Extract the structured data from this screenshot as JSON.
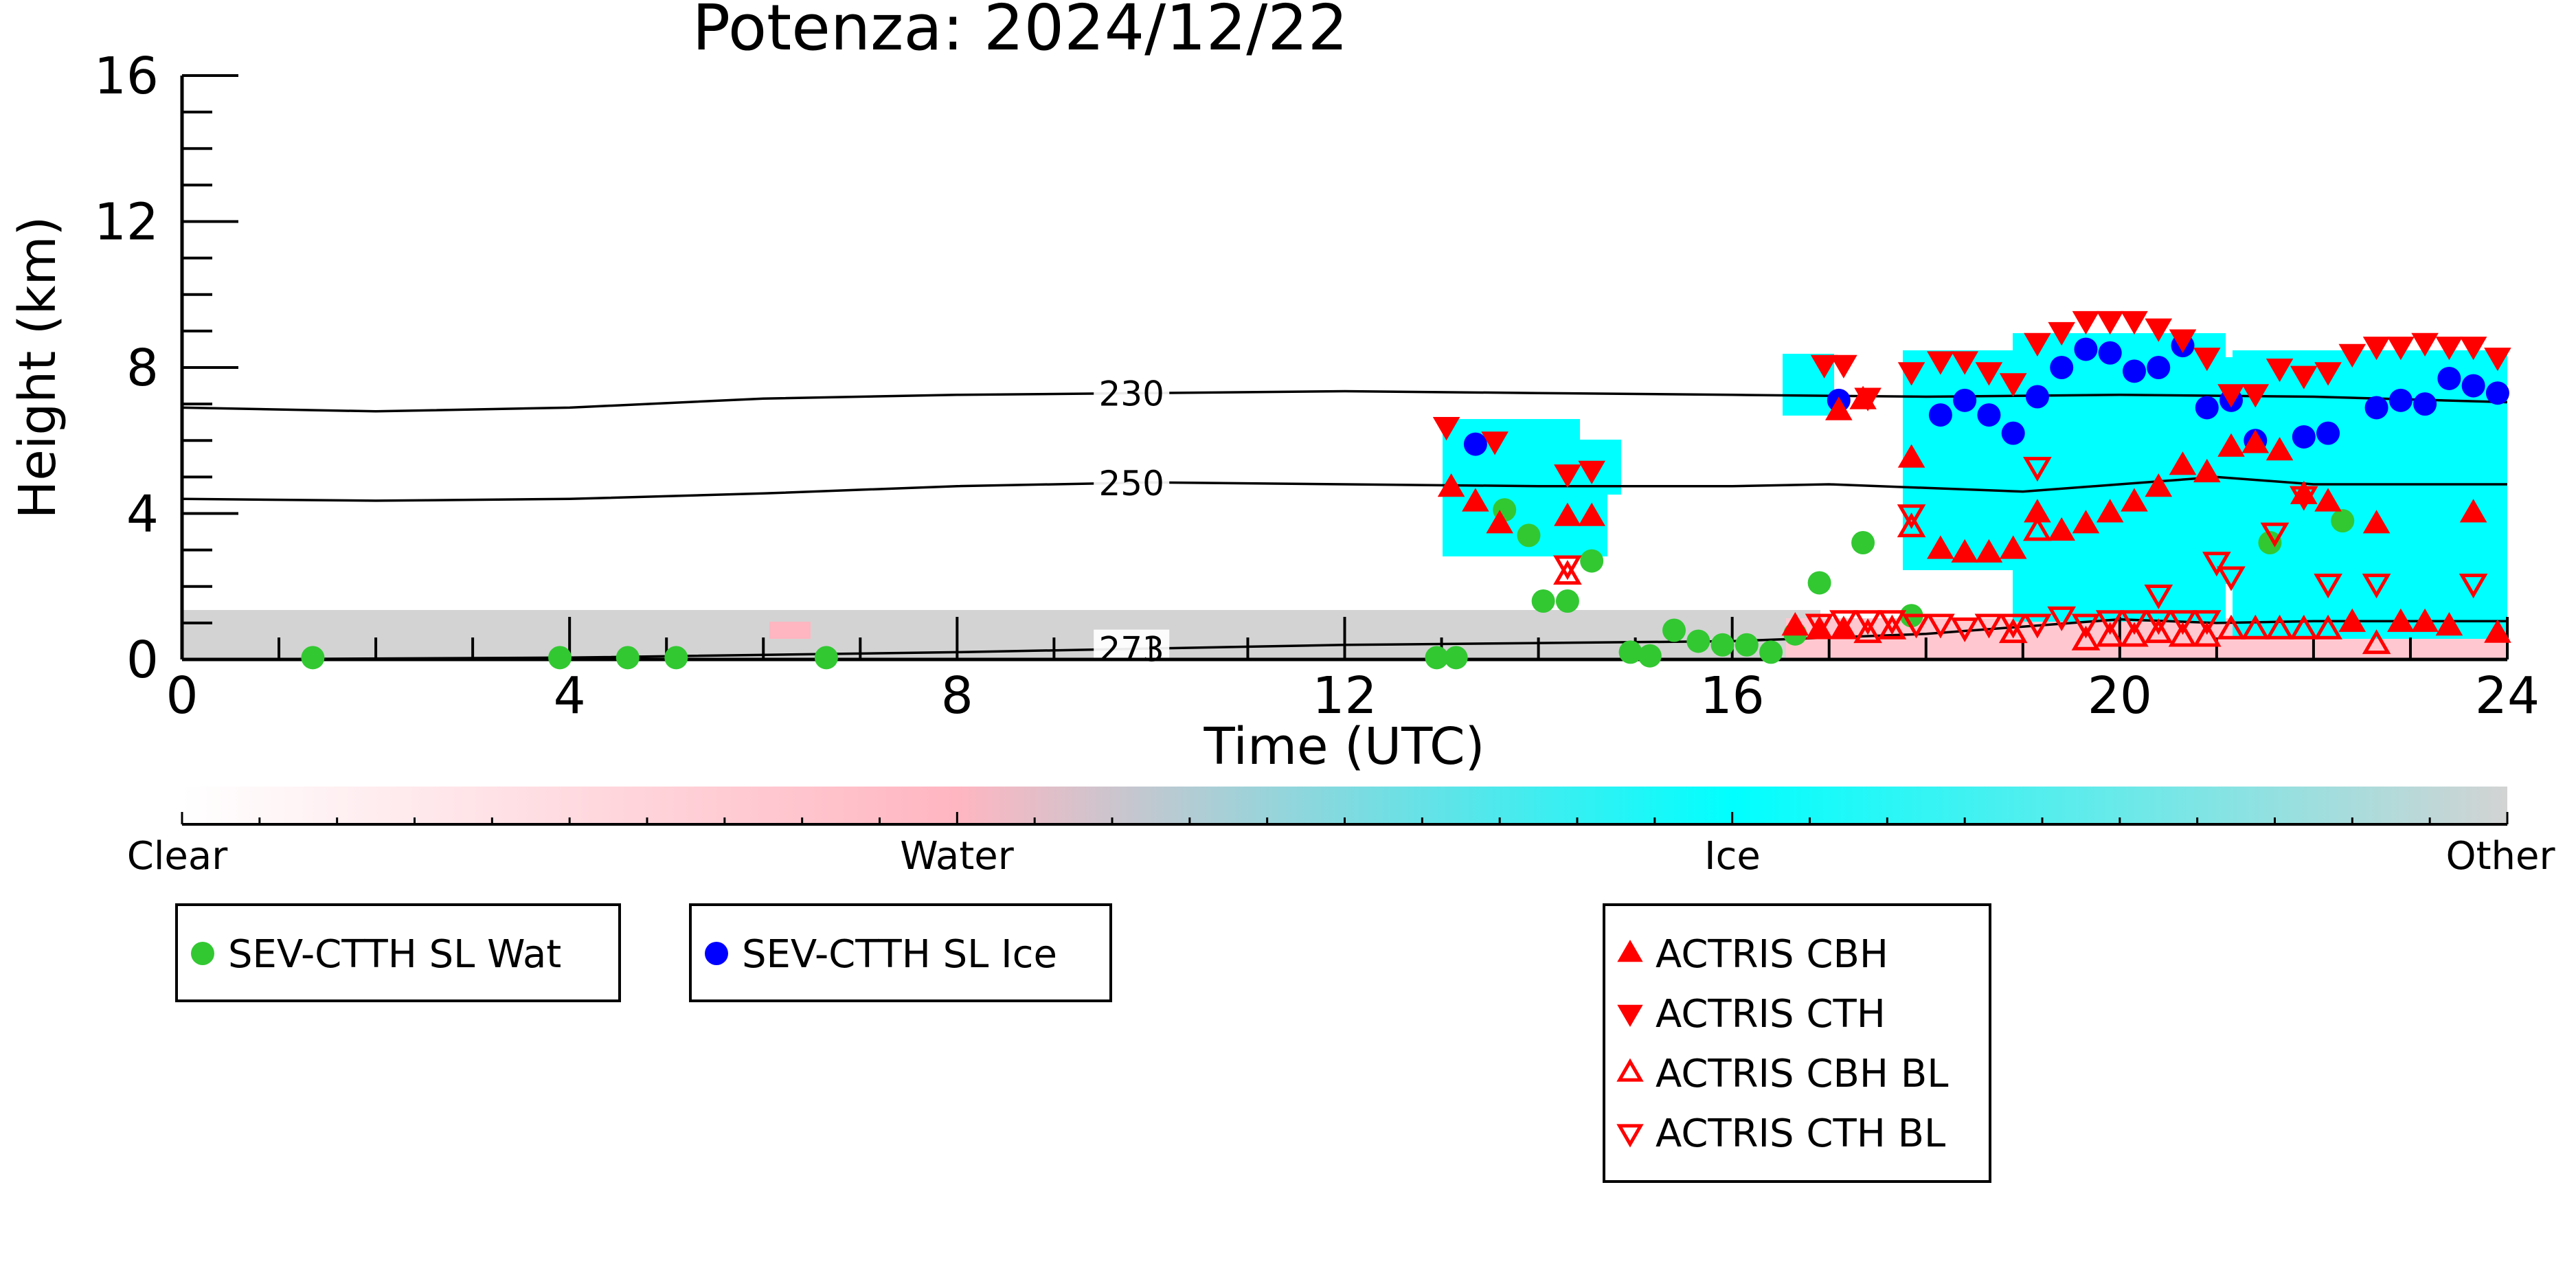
{
  "chart_data": {
    "type": "scatter",
    "title": "Potenza: 2024/12/22",
    "xlabel": "Time (UTC)",
    "ylabel": "Height (km)",
    "xlim": [
      0,
      24
    ],
    "ylim": [
      0,
      16
    ],
    "xticks": [
      "0",
      "4",
      "8",
      "12",
      "16",
      "20",
      "24"
    ],
    "yticks": [
      "0",
      "4",
      "8",
      "12",
      "16"
    ],
    "colorbar": {
      "labels": [
        "Clear",
        "Water",
        "Ice",
        "Other"
      ],
      "colors": [
        "#ffffff",
        "#ffb6c1",
        "#00ffff",
        "#d3d3d3"
      ]
    },
    "contours": [
      {
        "label": "230",
        "points": [
          [
            0,
            6.9
          ],
          [
            2,
            6.8
          ],
          [
            4,
            6.9
          ],
          [
            6,
            7.15
          ],
          [
            8,
            7.25
          ],
          [
            10,
            7.3
          ],
          [
            12,
            7.35
          ],
          [
            14,
            7.3
          ],
          [
            16,
            7.25
          ],
          [
            18,
            7.2
          ],
          [
            20,
            7.25
          ],
          [
            22,
            7.2
          ],
          [
            24,
            7.05
          ]
        ]
      },
      {
        "label": "250",
        "points": [
          [
            0,
            4.4
          ],
          [
            2,
            4.35
          ],
          [
            4,
            4.4
          ],
          [
            6,
            4.55
          ],
          [
            8,
            4.75
          ],
          [
            10,
            4.85
          ],
          [
            12,
            4.8
          ],
          [
            14,
            4.75
          ],
          [
            16,
            4.75
          ],
          [
            17,
            4.8
          ],
          [
            19,
            4.6
          ],
          [
            20,
            4.8
          ],
          [
            21,
            5.0
          ],
          [
            22,
            4.8
          ],
          [
            24,
            4.8
          ]
        ]
      },
      {
        "label": "273",
        "points": [
          [
            0,
            0.0
          ],
          [
            4,
            0.05
          ],
          [
            8,
            0.2
          ],
          [
            10,
            0.3
          ],
          [
            12,
            0.4
          ],
          [
            14,
            0.45
          ],
          [
            16,
            0.5
          ],
          [
            18,
            0.7
          ],
          [
            19,
            0.9
          ],
          [
            20,
            1.1
          ],
          [
            21,
            1.0
          ],
          [
            22,
            1.05
          ],
          [
            24,
            1.05
          ]
        ]
      }
    ],
    "series": [
      {
        "name": "SEV-CTTH SL Wat",
        "marker": "circle",
        "color": "#32c832",
        "points": [
          [
            1.35,
            0.05
          ],
          [
            3.9,
            0.05
          ],
          [
            4.6,
            0.05
          ],
          [
            5.1,
            0.05
          ],
          [
            6.65,
            0.05
          ],
          [
            12.95,
            0.05
          ],
          [
            13.15,
            0.05
          ],
          [
            13.65,
            4.1
          ],
          [
            13.9,
            3.4
          ],
          [
            14.05,
            1.6
          ],
          [
            14.3,
            1.6
          ],
          [
            14.55,
            2.7
          ],
          [
            14.95,
            0.2
          ],
          [
            15.15,
            0.1
          ],
          [
            15.4,
            0.8
          ],
          [
            15.65,
            0.5
          ],
          [
            15.9,
            0.4
          ],
          [
            16.15,
            0.4
          ],
          [
            16.4,
            0.2
          ],
          [
            16.65,
            0.7
          ],
          [
            16.9,
            2.1
          ],
          [
            17.35,
            3.2
          ],
          [
            17.85,
            1.2
          ],
          [
            21.55,
            3.2
          ],
          [
            22.3,
            3.8
          ]
        ]
      },
      {
        "name": "SEV-CTTH SL Ice",
        "marker": "circle",
        "color": "#0000ff",
        "points": [
          [
            13.35,
            5.9
          ],
          [
            17.1,
            7.1
          ],
          [
            18.15,
            6.7
          ],
          [
            18.4,
            7.1
          ],
          [
            18.65,
            6.7
          ],
          [
            18.9,
            6.2
          ],
          [
            19.15,
            7.2
          ],
          [
            19.4,
            8.0
          ],
          [
            19.65,
            8.5
          ],
          [
            19.9,
            8.4
          ],
          [
            20.15,
            7.9
          ],
          [
            20.4,
            8.0
          ],
          [
            20.65,
            8.6
          ],
          [
            20.9,
            6.9
          ],
          [
            21.15,
            7.1
          ],
          [
            21.4,
            6.0
          ],
          [
            21.9,
            6.1
          ],
          [
            22.15,
            6.2
          ],
          [
            22.65,
            6.9
          ],
          [
            22.9,
            7.1
          ],
          [
            23.15,
            7.0
          ],
          [
            23.4,
            7.7
          ],
          [
            23.65,
            7.5
          ],
          [
            23.9,
            7.3
          ]
        ]
      },
      {
        "name": "ACTRIS CBH",
        "marker": "triangle-up",
        "color": "#ff0000",
        "filled": true,
        "points": [
          [
            13.1,
            4.7
          ],
          [
            13.35,
            4.3
          ],
          [
            13.6,
            3.7
          ],
          [
            14.3,
            3.9
          ],
          [
            14.55,
            3.9
          ],
          [
            17.1,
            6.8
          ],
          [
            17.35,
            7.1
          ],
          [
            17.85,
            5.5
          ],
          [
            18.15,
            3.0
          ],
          [
            18.4,
            2.9
          ],
          [
            18.65,
            2.9
          ],
          [
            18.9,
            3.0
          ],
          [
            19.15,
            4.0
          ],
          [
            19.4,
            3.5
          ],
          [
            19.65,
            3.7
          ],
          [
            19.9,
            4.0
          ],
          [
            20.15,
            4.3
          ],
          [
            20.4,
            4.7
          ],
          [
            20.65,
            5.3
          ],
          [
            20.9,
            5.1
          ],
          [
            21.15,
            5.8
          ],
          [
            21.4,
            5.9
          ],
          [
            21.65,
            5.7
          ],
          [
            21.9,
            4.5
          ],
          [
            22.15,
            4.3
          ],
          [
            22.65,
            3.7
          ],
          [
            23.65,
            4.0
          ],
          [
            16.65,
            0.9
          ],
          [
            16.9,
            0.8
          ],
          [
            17.15,
            0.8
          ],
          [
            22.4,
            1.0
          ],
          [
            22.9,
            1.0
          ],
          [
            23.15,
            1.0
          ],
          [
            23.4,
            0.9
          ],
          [
            23.9,
            0.7
          ]
        ]
      },
      {
        "name": "ACTRIS CTH",
        "marker": "triangle-down",
        "color": "#ff0000",
        "filled": true,
        "points": [
          [
            13.05,
            6.4
          ],
          [
            13.55,
            6.0
          ],
          [
            14.3,
            5.1
          ],
          [
            14.55,
            5.2
          ],
          [
            16.95,
            8.1
          ],
          [
            17.15,
            8.1
          ],
          [
            17.4,
            7.2
          ],
          [
            17.85,
            7.9
          ],
          [
            18.15,
            8.2
          ],
          [
            18.4,
            8.2
          ],
          [
            18.65,
            7.9
          ],
          [
            18.9,
            7.6
          ],
          [
            19.15,
            8.7
          ],
          [
            19.4,
            9.0
          ],
          [
            19.65,
            9.3
          ],
          [
            19.9,
            9.3
          ],
          [
            20.15,
            9.3
          ],
          [
            20.4,
            9.1
          ],
          [
            20.65,
            8.8
          ],
          [
            20.9,
            8.3
          ],
          [
            21.15,
            7.3
          ],
          [
            21.4,
            7.3
          ],
          [
            21.65,
            8.0
          ],
          [
            21.9,
            7.8
          ],
          [
            22.15,
            7.9
          ],
          [
            22.4,
            8.4
          ],
          [
            22.65,
            8.6
          ],
          [
            22.9,
            8.6
          ],
          [
            23.15,
            8.7
          ],
          [
            23.4,
            8.6
          ],
          [
            23.65,
            8.6
          ],
          [
            23.9,
            8.3
          ]
        ]
      },
      {
        "name": "ACTRIS CBH BL",
        "marker": "triangle-up",
        "color": "#ff0000",
        "filled": false,
        "points": [
          [
            14.3,
            2.3
          ],
          [
            17.85,
            3.6
          ],
          [
            19.15,
            3.5
          ],
          [
            19.65,
            0.5
          ],
          [
            19.9,
            0.6
          ],
          [
            20.15,
            0.6
          ],
          [
            20.4,
            0.7
          ],
          [
            20.65,
            0.6
          ],
          [
            20.9,
            0.6
          ],
          [
            21.15,
            0.8
          ],
          [
            21.4,
            0.8
          ],
          [
            21.65,
            0.8
          ],
          [
            21.9,
            0.8
          ],
          [
            22.15,
            0.8
          ],
          [
            22.65,
            0.4
          ],
          [
            17.4,
            0.7
          ],
          [
            17.65,
            0.8
          ],
          [
            18.9,
            0.7
          ]
        ]
      },
      {
        "name": "ACTRIS CTH BL",
        "marker": "triangle-down",
        "color": "#ff0000",
        "filled": false,
        "points": [
          [
            14.3,
            2.6
          ],
          [
            17.85,
            4.0
          ],
          [
            19.15,
            5.3
          ],
          [
            20.4,
            1.8
          ],
          [
            21.0,
            2.7
          ],
          [
            21.15,
            2.3
          ],
          [
            21.6,
            3.5
          ],
          [
            21.9,
            4.5
          ],
          [
            22.15,
            2.1
          ],
          [
            22.65,
            2.1
          ],
          [
            23.65,
            2.1
          ],
          [
            16.9,
            1.0
          ],
          [
            17.15,
            1.1
          ],
          [
            17.4,
            1.1
          ],
          [
            17.65,
            1.1
          ],
          [
            17.9,
            1.0
          ],
          [
            18.15,
            1.0
          ],
          [
            18.4,
            0.9
          ],
          [
            18.65,
            1.0
          ],
          [
            18.9,
            1.0
          ],
          [
            19.15,
            1.0
          ],
          [
            19.4,
            1.2
          ],
          [
            19.65,
            1.0
          ],
          [
            19.9,
            1.1
          ],
          [
            20.15,
            1.1
          ],
          [
            20.4,
            1.1
          ],
          [
            20.65,
            1.1
          ],
          [
            20.9,
            1.1
          ]
        ]
      }
    ]
  }
}
